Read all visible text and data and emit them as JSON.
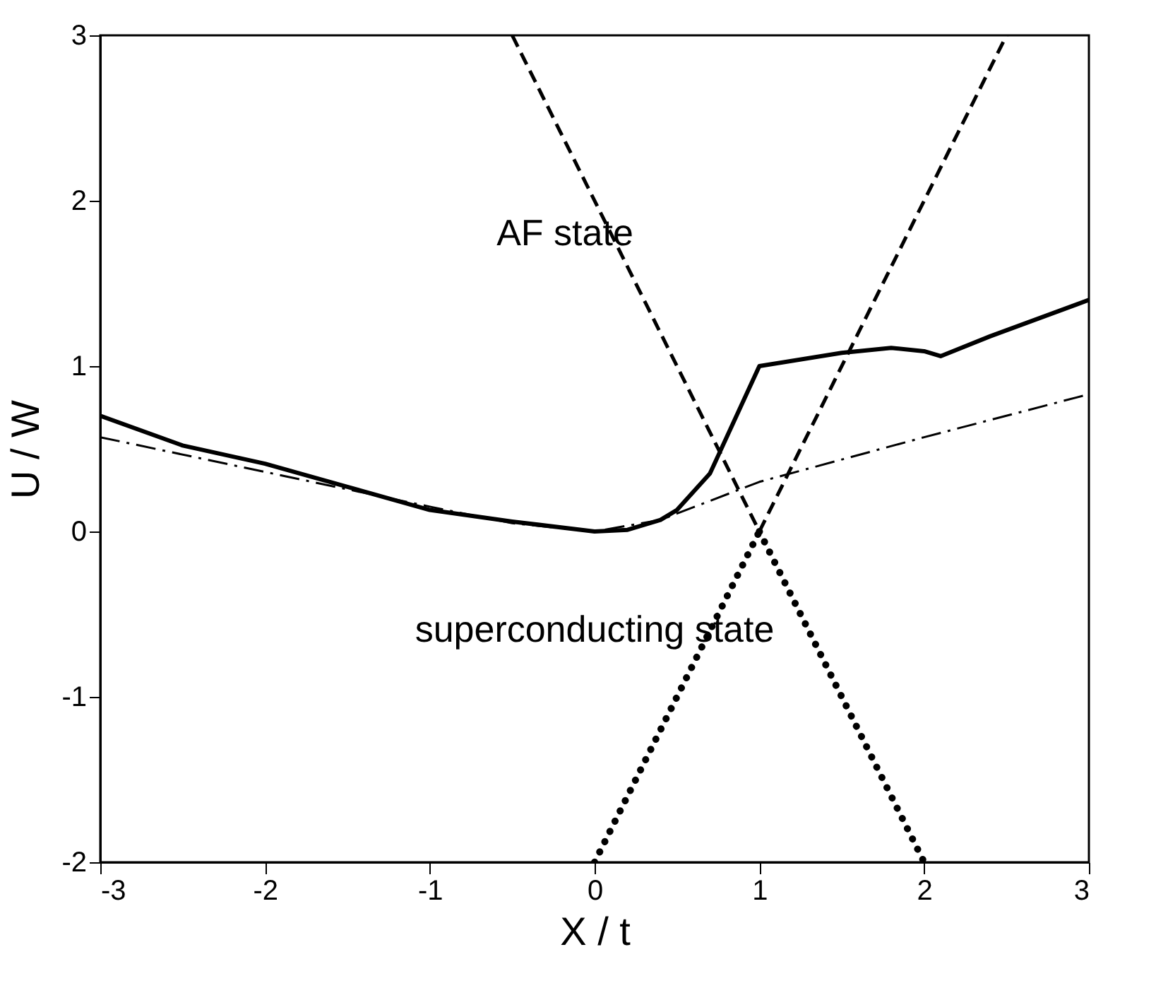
{
  "chart_data": {
    "type": "line",
    "xlabel": "X / t",
    "ylabel": "U / W",
    "xlim": [
      -3,
      3
    ],
    "ylim": [
      -2,
      3
    ],
    "xticks": [
      -3,
      -2,
      -1,
      0,
      1,
      2,
      3
    ],
    "yticks": [
      -2,
      -1,
      0,
      1,
      2,
      3
    ],
    "grid": false,
    "marker": "none",
    "series": [
      {
        "color": "#000000",
        "line_style": "solid",
        "x": [
          -3,
          -2.5,
          -2,
          -1.5,
          -1,
          -0.5,
          0,
          0.2,
          0.4,
          0.5,
          0.7,
          1,
          1.5,
          1.8,
          2,
          2.1,
          2.4,
          3
        ],
        "values": [
          0.7,
          0.52,
          0.41,
          0.27,
          0.13,
          0.06,
          0.0,
          0.01,
          0.07,
          0.13,
          0.35,
          1.0,
          1.08,
          1.11,
          1.09,
          1.06,
          1.18,
          1.4
        ]
      },
      {
        "color": "#000000",
        "line_style": "dashdot",
        "x": [
          -3,
          -2,
          -1,
          -0.5,
          0,
          0.4,
          1,
          2,
          3
        ],
        "values": [
          0.57,
          0.36,
          0.15,
          0.05,
          0.0,
          0.07,
          0.3,
          0.57,
          0.83
        ]
      },
      {
        "color": "#000000",
        "line_style": "dashed",
        "x": [
          -0.5,
          1
        ],
        "values": [
          3,
          0
        ]
      },
      {
        "color": "#000000",
        "line_style": "dotted",
        "x": [
          1,
          2
        ],
        "values": [
          0,
          -2
        ]
      },
      {
        "color": "#000000",
        "line_style": "dotted",
        "x": [
          0,
          1
        ],
        "values": [
          -2,
          0
        ]
      },
      {
        "color": "#000000",
        "line_style": "dashed",
        "x": [
          1,
          2.5
        ],
        "values": [
          0,
          3
        ]
      }
    ],
    "annotations": [
      "AF state",
      "superconducting state"
    ]
  }
}
